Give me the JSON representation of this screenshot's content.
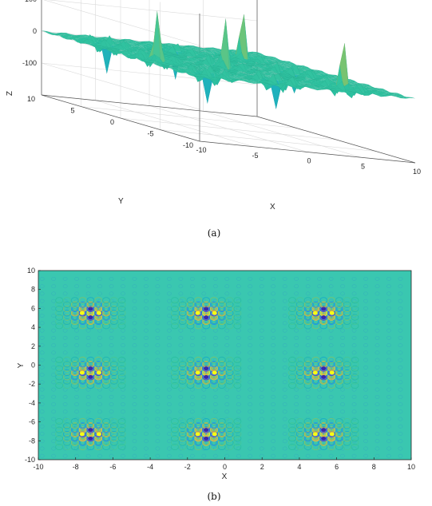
{
  "captions": {
    "a": "(a)",
    "b": "(b)"
  },
  "colors": {
    "colormap": [
      "#3e26a8",
      "#4653f4",
      "#2c86f2",
      "#17a9cc",
      "#2cc0a0",
      "#3ac79f",
      "#8cc262",
      "#d2ba3c",
      "#fac232",
      "#f9fb14"
    ],
    "background": "#3ac7b0"
  },
  "chart_data": [
    {
      "type": "surface3d",
      "xlabel": "X",
      "ylabel": "Y",
      "zlabel": "Z",
      "xlim": [
        -10,
        10
      ],
      "ylim": [
        -10,
        10
      ],
      "zlim": [
        -200,
        200
      ],
      "xticks": [
        -10,
        -5,
        0,
        5,
        10
      ],
      "yticks": [
        -10,
        -5,
        0,
        5,
        10
      ],
      "zticks": [
        -100,
        0,
        100
      ],
      "xtick_labels": [
        "-10",
        "-5",
        "0",
        "5",
        "10"
      ],
      "ytick_labels": [
        "-10",
        "-5",
        "0",
        "5",
        "10"
      ],
      "ztick_labels": [
        "-100",
        "0",
        "100"
      ],
      "peak_centers_x": [
        -7.2,
        -1.0,
        5.3
      ],
      "peak_centers_y": [
        5.5,
        -0.8,
        -7.3
      ],
      "z_max": 180,
      "z_min": -160,
      "grid": true
    },
    {
      "type": "contour",
      "xlabel": "X",
      "ylabel": "Y",
      "xlim": [
        -10,
        10
      ],
      "ylim": [
        -10,
        10
      ],
      "xticks": [
        -10,
        -8,
        -6,
        -4,
        -2,
        0,
        2,
        4,
        6,
        8,
        10
      ],
      "yticks": [
        -10,
        -8,
        -6,
        -4,
        -2,
        0,
        2,
        4,
        6,
        8,
        10
      ],
      "xtick_labels": [
        "-10",
        "-8",
        "-6",
        "-4",
        "-2",
        "0",
        "2",
        "4",
        "6",
        "8",
        "10"
      ],
      "ytick_labels": [
        "-10",
        "-8",
        "-6",
        "-4",
        "-2",
        "0",
        "2",
        "4",
        "6",
        "8",
        "10"
      ],
      "peak_centers_x": [
        -7.2,
        -1.0,
        5.3
      ],
      "peak_centers_y": [
        5.5,
        -0.8,
        -7.3
      ],
      "grid": false
    }
  ]
}
